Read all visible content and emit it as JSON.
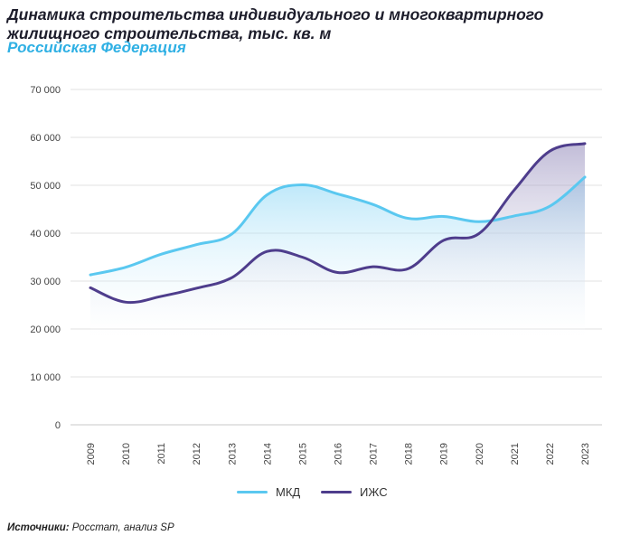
{
  "header": {
    "title": "Динамика строительства индивидуального и многоквартирного жилищного строительства, тыс. кв. м",
    "subtitle": "Российская Федерация"
  },
  "footer": {
    "source_label": "Источники:",
    "source_text": " Росстат, анализ SP"
  },
  "colors": {
    "mkd": "#5ac8f0",
    "izhs": "#4e3d8c"
  },
  "chart_data": {
    "type": "area",
    "title": "Динамика строительства индивидуального и многоквартирного жилищного строительства, тыс. кв. м",
    "subtitle": "Российская Федерация",
    "x": [
      "2009",
      "2010",
      "2011",
      "2012",
      "2013",
      "2014",
      "2015",
      "2016",
      "2017",
      "2018",
      "2019",
      "2020",
      "2021",
      "2022",
      "2023"
    ],
    "ylim": [
      0,
      70000
    ],
    "yticks": [
      0,
      10000,
      20000,
      30000,
      40000,
      50000,
      60000,
      70000
    ],
    "ytick_labels": [
      "0",
      "10 000",
      "20 000",
      "30 000",
      "40 000",
      "50 000",
      "60 000",
      "70 000"
    ],
    "grid": true,
    "legend": "bottom",
    "series": [
      {
        "name": "МКД",
        "values": [
          31300,
          32900,
          35600,
          37600,
          39800,
          48000,
          50100,
          48200,
          46000,
          43100,
          43500,
          42400,
          43600,
          45600,
          51700
        ]
      },
      {
        "name": "ИЖС",
        "values": [
          28600,
          25600,
          26800,
          28500,
          30700,
          36200,
          35000,
          31800,
          33000,
          32600,
          38500,
          39900,
          49000,
          57100,
          58700
        ]
      }
    ]
  }
}
